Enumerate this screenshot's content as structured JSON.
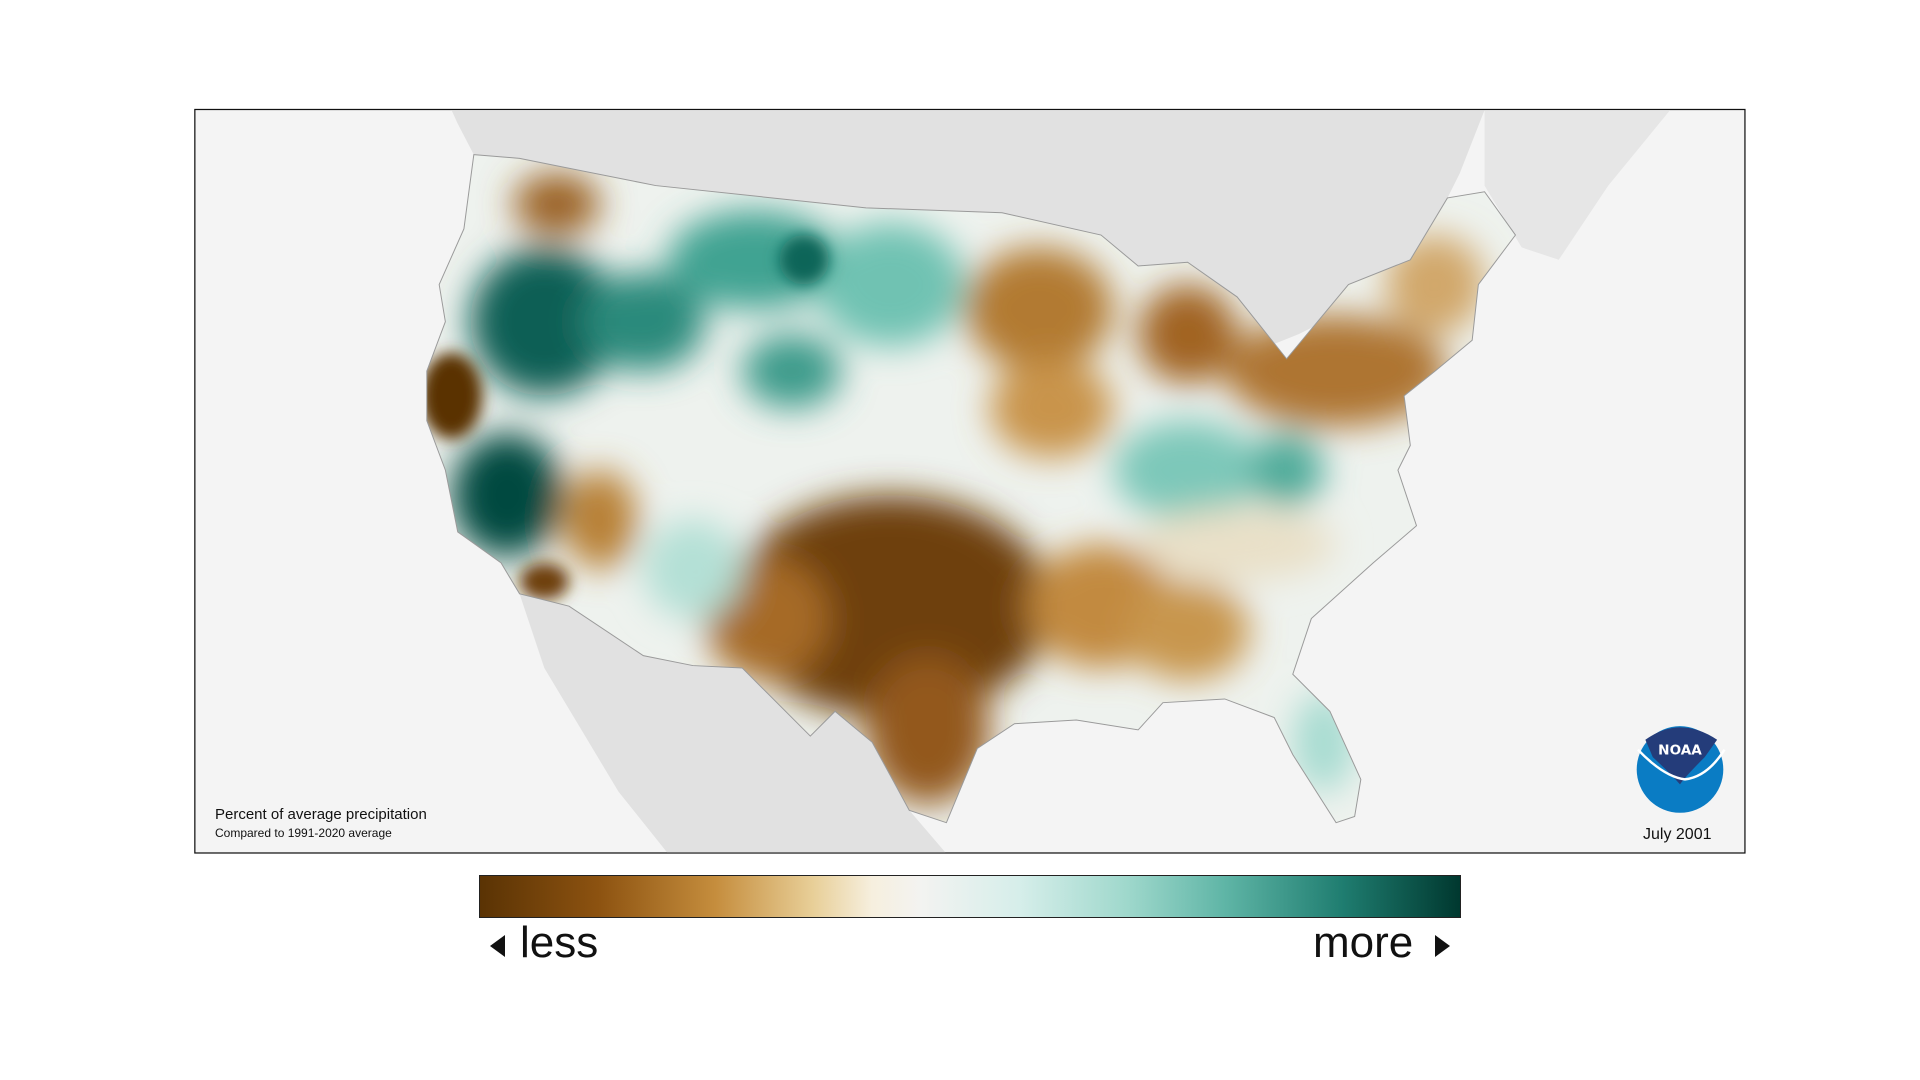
{
  "map": {
    "title": "Percent of average precipitation",
    "subtitle": "Compared to 1991-2020 average",
    "date": "July 2001",
    "logo_text": "NOAA"
  },
  "legend": {
    "less_label": "less",
    "more_label": "more",
    "colors": [
      "#5a3304",
      "#8c5210",
      "#c58d3d",
      "#e8cf98",
      "#f3f3f1",
      "#9fd8cc",
      "#1f7d70",
      "#00382f"
    ]
  }
}
